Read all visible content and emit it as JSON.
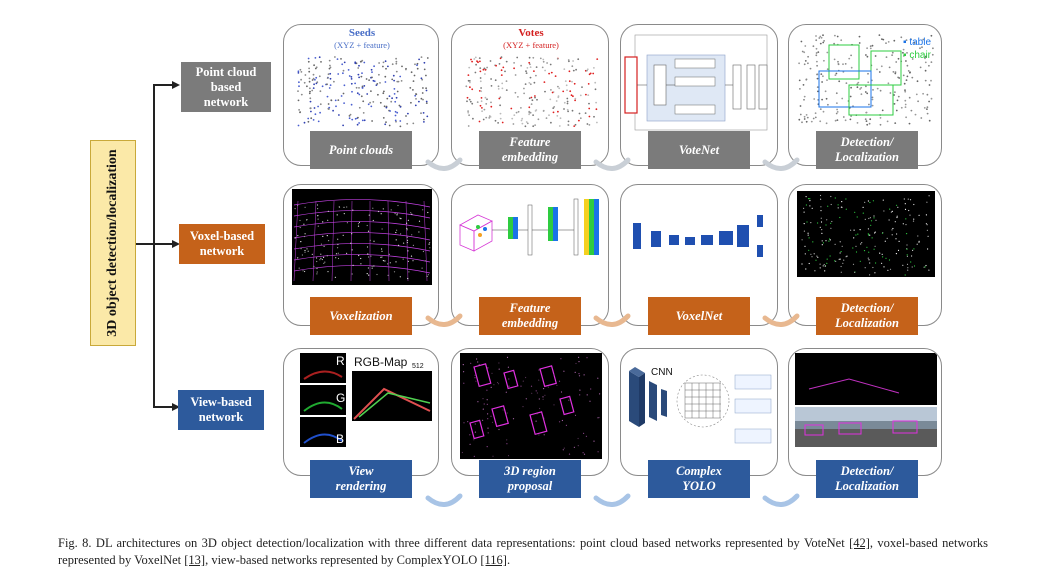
{
  "root_label": "3D object detection/localization",
  "networks": [
    {
      "label_lines": [
        "Point cloud",
        "based",
        "network"
      ],
      "color": "#7b7b7b"
    },
    {
      "label_lines": [
        "Voxel-based",
        "network"
      ],
      "color": "#c5621a"
    },
    {
      "label_lines": [
        "View-based",
        "network"
      ],
      "color": "#2d5a9c"
    }
  ],
  "rows": [
    {
      "steps": [
        {
          "label_lines": [
            "Point clouds"
          ],
          "panel_text": {
            "title": "Seeds",
            "subtitle": "(XYZ + feature)"
          }
        },
        {
          "label_lines": [
            "Feature",
            "embedding"
          ],
          "panel_text": {
            "title": "Votes",
            "subtitle": "(XYZ + feature)"
          }
        },
        {
          "label_lines": [
            "VoteNet"
          ]
        },
        {
          "label_lines": [
            "Detection/",
            "Localization"
          ],
          "legend": [
            "table",
            "chair"
          ]
        }
      ]
    },
    {
      "steps": [
        {
          "label_lines": [
            "Voxelization"
          ]
        },
        {
          "label_lines": [
            "Feature",
            "embedding"
          ]
        },
        {
          "label_lines": [
            "VoxelNet"
          ]
        },
        {
          "label_lines": [
            "Detection/",
            "Localization"
          ]
        }
      ]
    },
    {
      "steps": [
        {
          "label_lines": [
            "View",
            "rendering"
          ],
          "panel_text": {
            "title": "RGB-Map",
            "num": "512",
            "channels": [
              "R",
              "G",
              "B"
            ]
          }
        },
        {
          "label_lines": [
            "3D region",
            "proposal"
          ]
        },
        {
          "label_lines": [
            "Complex",
            "YOLO"
          ],
          "panel_text": {
            "title": "CNN"
          }
        },
        {
          "label_lines": [
            "Detection/",
            "Localization"
          ]
        }
      ]
    }
  ],
  "caption": {
    "prefix": "Fig. 8.   DL architectures on 3D object detection/localization with three different data representations: point cloud based networks represented by VoteNet ",
    "ref1": "[42]",
    "mid1": ", voxel-based networks represented by VoxelNet ",
    "ref2": "[13]",
    "mid2": ", view-based networks represented by ComplexYOLO ",
    "ref3": "[116]",
    "suffix": "."
  },
  "colors": {
    "gray": "#7b7b7b",
    "orange": "#c5621a",
    "blue": "#2d5a9c",
    "root_fill": "#fbe9a8"
  }
}
